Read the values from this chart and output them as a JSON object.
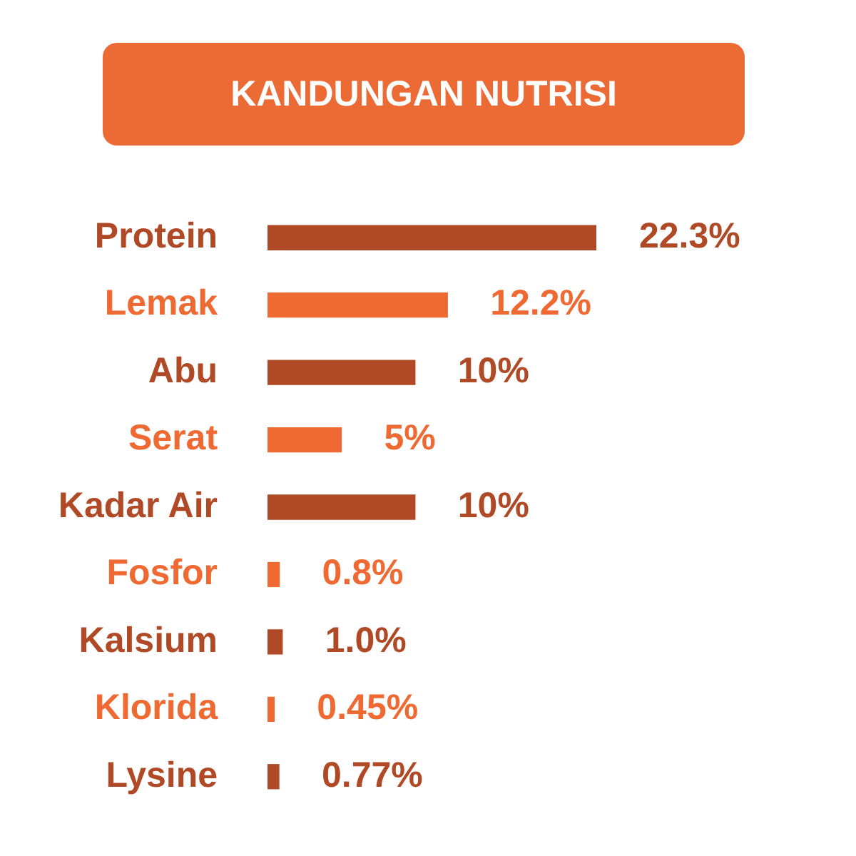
{
  "chart_data": {
    "type": "bar",
    "orientation": "horizontal",
    "title": "KANDUNGAN NUTRISI",
    "categories": [
      "Protein",
      "Lemak",
      "Abu",
      "Serat",
      "Kadar Air",
      "Fosfor",
      "Kalsium",
      "Klorida",
      "Lysine"
    ],
    "values": [
      22.3,
      12.2,
      10,
      5,
      10,
      0.8,
      1.0,
      0.45,
      0.77
    ],
    "colors": [
      "#b04a26",
      "#ee6a32",
      "#b04a26",
      "#ee6a32",
      "#b04a26",
      "#ee6a32",
      "#b04a26",
      "#ee6a32",
      "#b04a26"
    ],
    "value_labels": [
      "22.3%",
      "12.2%",
      "10%",
      "5%",
      "10%",
      "0.8%",
      "1.0%",
      "0.45%",
      "0.77%"
    ]
  }
}
